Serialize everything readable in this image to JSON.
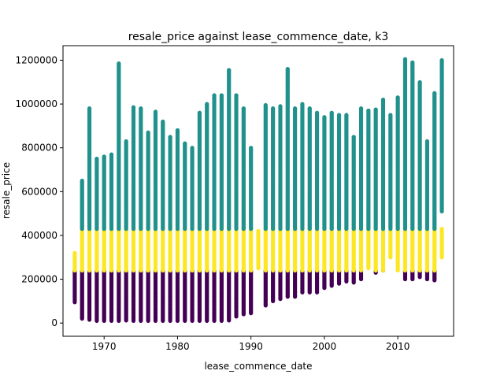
{
  "chart_data": {
    "type": "scatter",
    "title": "resale_price against lease_commence_date, k3",
    "xlabel": "lease_commence_date",
    "ylabel": "resale_price",
    "xlim": [
      1964.4,
      2017.6
    ],
    "ylim": [
      -60450,
      1266450
    ],
    "grid": false,
    "legend": "none",
    "x_ticks": [
      1970,
      1980,
      1990,
      2000,
      2010
    ],
    "x_tick_labels": [
      "1970",
      "1980",
      "1990",
      "2000",
      "2010"
    ],
    "y_ticks": [
      0,
      200000,
      400000,
      600000,
      800000,
      1000000,
      1200000
    ],
    "y_tick_labels": [
      "0",
      "200000",
      "400000",
      "600000",
      "800000",
      "1000000",
      "1200000"
    ],
    "colors": {
      "cluster_low": "#440154",
      "cluster_mid": "#fde725",
      "cluster_high": "#21918c"
    },
    "years": [
      1966,
      1967,
      1968,
      1969,
      1970,
      1971,
      1972,
      1973,
      1974,
      1975,
      1976,
      1977,
      1978,
      1979,
      1980,
      1981,
      1982,
      1983,
      1984,
      1985,
      1986,
      1987,
      1988,
      1989,
      1990,
      1991,
      1992,
      1993,
      1994,
      1995,
      1996,
      1997,
      1998,
      1999,
      2000,
      2001,
      2002,
      2003,
      2004,
      2005,
      2006,
      2007,
      2008,
      2009,
      2010,
      2011,
      2012,
      2013,
      2014,
      2015,
      2016
    ],
    "series": [
      {
        "cluster": "low",
        "color": "#440154",
        "y_min": [
          95000,
          20000,
          15000,
          10000,
          10000,
          10000,
          10000,
          12000,
          10000,
          10000,
          10000,
          10000,
          10000,
          10000,
          10000,
          10000,
          10000,
          10000,
          10000,
          10000,
          10000,
          12000,
          30000,
          40000,
          45000,
          null,
          80000,
          100000,
          110000,
          120000,
          120000,
          140000,
          140000,
          140000,
          160000,
          170000,
          180000,
          190000,
          185000,
          200000,
          null,
          230000,
          240000,
          null,
          null,
          200000,
          200000,
          210000,
          200000,
          195000,
          null
        ],
        "y_max": [
          240000,
          240000,
          240000,
          240000,
          240000,
          240000,
          240000,
          240000,
          240000,
          240000,
          240000,
          240000,
          240000,
          240000,
          240000,
          240000,
          240000,
          240000,
          240000,
          240000,
          240000,
          240000,
          240000,
          240000,
          240000,
          null,
          240000,
          240000,
          240000,
          240000,
          240000,
          240000,
          240000,
          240000,
          240000,
          240000,
          240000,
          240000,
          240000,
          240000,
          null,
          240000,
          240000,
          null,
          null,
          240000,
          240000,
          240000,
          240000,
          240000,
          null
        ]
      },
      {
        "cluster": "mid",
        "color": "#fde725",
        "y_min": [
          240000,
          240000,
          240000,
          240000,
          240000,
          240000,
          240000,
          240000,
          240000,
          240000,
          240000,
          240000,
          240000,
          240000,
          240000,
          240000,
          240000,
          240000,
          240000,
          240000,
          240000,
          240000,
          240000,
          240000,
          240000,
          250000,
          240000,
          240000,
          240000,
          240000,
          240000,
          240000,
          240000,
          240000,
          240000,
          240000,
          240000,
          240000,
          240000,
          240000,
          250000,
          240000,
          240000,
          300000,
          240000,
          240000,
          240000,
          240000,
          240000,
          240000,
          300000
        ],
        "y_max": [
          320000,
          430000,
          430000,
          430000,
          430000,
          430000,
          430000,
          430000,
          430000,
          430000,
          430000,
          430000,
          430000,
          430000,
          430000,
          430000,
          430000,
          430000,
          430000,
          430000,
          430000,
          430000,
          430000,
          430000,
          430000,
          420000,
          430000,
          430000,
          430000,
          430000,
          430000,
          430000,
          430000,
          430000,
          430000,
          430000,
          430000,
          430000,
          430000,
          430000,
          430000,
          430000,
          430000,
          420000,
          430000,
          430000,
          430000,
          430000,
          430000,
          430000,
          430000
        ]
      },
      {
        "cluster": "high",
        "color": "#21918c",
        "y_min": [
          null,
          430000,
          430000,
          430000,
          430000,
          430000,
          430000,
          430000,
          430000,
          430000,
          430000,
          430000,
          430000,
          430000,
          430000,
          430000,
          430000,
          430000,
          430000,
          430000,
          430000,
          430000,
          430000,
          430000,
          430000,
          430000,
          430000,
          430000,
          430000,
          430000,
          430000,
          430000,
          430000,
          430000,
          430000,
          430000,
          430000,
          430000,
          430000,
          430000,
          430000,
          430000,
          430000,
          430000,
          430000,
          430000,
          430000,
          430000,
          430000,
          430000,
          510000
        ],
        "y_max": [
          null,
          650000,
          980000,
          750000,
          760000,
          770000,
          1185000,
          830000,
          985000,
          980000,
          870000,
          965000,
          920000,
          850000,
          880000,
          820000,
          800000,
          960000,
          1000000,
          1040000,
          1040000,
          1155000,
          1040000,
          980000,
          800000,
          null,
          995000,
          980000,
          990000,
          1160000,
          980000,
          1000000,
          980000,
          960000,
          940000,
          960000,
          950000,
          950000,
          850000,
          980000,
          970000,
          975000,
          1020000,
          950000,
          1030000,
          1205000,
          1190000,
          1100000,
          830000,
          1050000,
          1200000
        ]
      }
    ]
  }
}
